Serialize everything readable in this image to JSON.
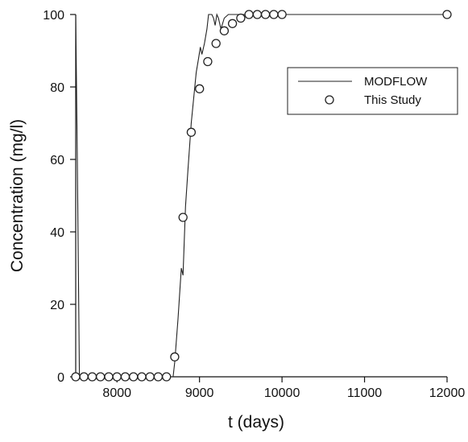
{
  "chart_data": {
    "type": "line",
    "title": "",
    "xlabel": "t (days)",
    "ylabel": "Concentration (mg/l)",
    "xlim": [
      7500,
      12000
    ],
    "ylim": [
      0,
      100
    ],
    "x_ticks": [
      8000,
      9000,
      10000,
      11000,
      12000
    ],
    "x_tick_labels": [
      "8000",
      "9000",
      "10000",
      "11000",
      "12000"
    ],
    "y_ticks": [
      0,
      20,
      40,
      60,
      80,
      100
    ],
    "y_tick_labels": [
      "0",
      "20",
      "40",
      "60",
      "80",
      "100"
    ],
    "grid": false,
    "legend_position": "top-right",
    "series": [
      {
        "name": "MODFLOW",
        "style": "line",
        "x": [
          7500,
          7520,
          7545,
          7600,
          8000,
          8500,
          8680,
          8700,
          8740,
          8780,
          8800,
          8830,
          8860,
          8900,
          8930,
          8960,
          8990,
          9010,
          9030,
          9060,
          9090,
          9110,
          9130,
          9150,
          9170,
          9190,
          9210,
          9230,
          9260,
          9300,
          9350,
          9400,
          9500,
          9600,
          9700,
          9800,
          9900,
          10000,
          10500,
          11000,
          11500,
          12000
        ],
        "values": [
          100,
          60,
          0,
          0,
          0,
          0,
          0,
          4,
          16,
          30,
          28,
          47,
          57,
          70,
          77,
          84,
          88,
          91,
          89,
          92,
          96,
          100,
          100,
          100,
          99,
          97,
          100,
          99,
          96,
          99,
          100,
          100,
          100,
          100,
          100,
          100,
          100,
          100,
          100,
          100,
          100,
          100
        ]
      },
      {
        "name": "This Study",
        "style": "circle",
        "x": [
          7500,
          7600,
          7700,
          7800,
          7900,
          8000,
          8100,
          8200,
          8300,
          8400,
          8500,
          8600,
          8700,
          8800,
          8900,
          9000,
          9100,
          9200,
          9300,
          9400,
          9500,
          9600,
          9700,
          9800,
          9900,
          10000,
          12000
        ],
        "values": [
          0,
          0,
          0,
          0,
          0,
          0,
          0,
          0,
          0,
          0,
          0,
          0,
          5.5,
          44,
          67.5,
          79.5,
          87,
          92,
          95.5,
          97.5,
          99,
          100,
          100,
          100,
          100,
          100,
          100
        ]
      }
    ]
  }
}
